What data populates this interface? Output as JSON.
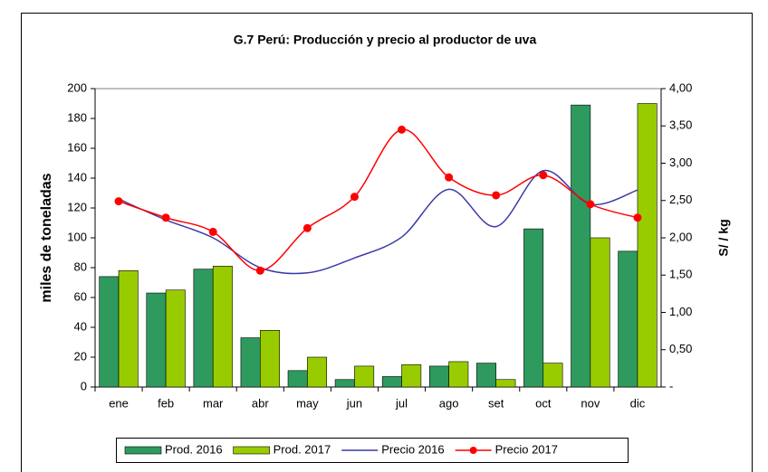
{
  "chart_data": {
    "type": "bar_line",
    "title": "G.7 Perú: Producción y precio al productor de uva",
    "ylabel": "miles de toneladas",
    "y2label": "S/ / kg",
    "categories": [
      "ene",
      "feb",
      "mar",
      "abr",
      "may",
      "jun",
      "jul",
      "ago",
      "set",
      "oct",
      "nov",
      "dic"
    ],
    "series": [
      {
        "name": "Prod. 2016",
        "type": "bar",
        "color": "#2f9a5e",
        "values": [
          74,
          63,
          79,
          33,
          11,
          5,
          7,
          14,
          16,
          106,
          189,
          91
        ]
      },
      {
        "name": "Prod. 2017",
        "type": "bar",
        "color": "#99cc00",
        "values": [
          78,
          65,
          81,
          38,
          20,
          14,
          15,
          17,
          5,
          16,
          100,
          190
        ]
      },
      {
        "name": "Precio 2016",
        "type": "line",
        "axis": "y2",
        "color": "#3a3aa8",
        "values": [
          2.52,
          2.24,
          2.0,
          1.6,
          1.53,
          1.73,
          2.01,
          2.65,
          2.15,
          2.9,
          2.45,
          2.64
        ]
      },
      {
        "name": "Precio 2017",
        "type": "line",
        "axis": "y2",
        "color": "#ff0000",
        "markers": true,
        "values": [
          2.49,
          2.27,
          2.08,
          1.56,
          2.13,
          2.55,
          3.45,
          2.81,
          2.57,
          2.84,
          2.45,
          2.27
        ]
      }
    ],
    "ylim": [
      0,
      200
    ],
    "yticks": [
      0,
      20,
      40,
      60,
      80,
      100,
      120,
      140,
      160,
      180,
      200
    ],
    "y2lim": [
      0,
      4
    ],
    "y2ticks": [
      {
        "value": 0,
        "label": "-"
      },
      {
        "value": 0.5,
        "label": "0,50"
      },
      {
        "value": 1,
        "label": "1,00"
      },
      {
        "value": 1.5,
        "label": "1,50"
      },
      {
        "value": 2,
        "label": "2,00"
      },
      {
        "value": 2.5,
        "label": "2,50"
      },
      {
        "value": 3,
        "label": "3,00"
      },
      {
        "value": 3.5,
        "label": "3,50"
      },
      {
        "value": 4,
        "label": "4,00"
      }
    ],
    "legend": "bottom"
  }
}
